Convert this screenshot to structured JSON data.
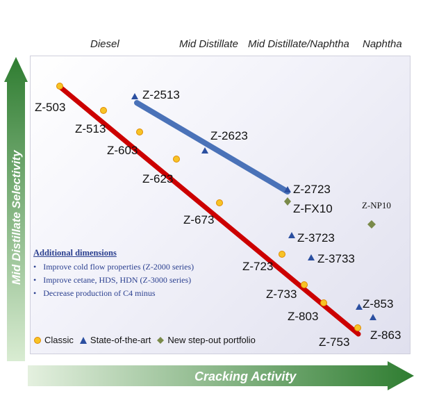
{
  "categories": [
    "Diesel",
    "Mid Distillate",
    "Mid Distillate/Naphtha",
    "Naphtha"
  ],
  "axes": {
    "y_label": "Mid Distillate Selectivity",
    "x_label": "Cracking Activity"
  },
  "series": {
    "classic": {
      "name": "Classic",
      "color": "#cc0000",
      "marker_color": "#f7c326",
      "points": [
        "Z-503",
        "Z-513",
        "Z-603",
        "Z-623",
        "Z-673",
        "Z-723",
        "Z-733",
        "Z-803",
        "Z-753"
      ]
    },
    "state_of_the_art": {
      "name": "State-of-the-art",
      "color": "#4a72b8",
      "marker_color": "#2b4fa0",
      "line_points": [
        "Z-2513",
        "Z-2623",
        "Z-2723"
      ],
      "other_points": [
        "Z-3723",
        "Z-3733",
        "Z-853",
        "Z-863"
      ]
    },
    "step_out": {
      "name": "New step-out portfolio",
      "marker_color": "#7a8a4a",
      "points": [
        "Z-FX10",
        "Z-NP10"
      ]
    }
  },
  "additional_dimensions": {
    "title": "Additional dimensions",
    "items": [
      "Improve cold flow properties (Z-2000 series)",
      "Improve cetane, HDS, HDN (Z-3000 series)",
      "Decrease production of C4 minus"
    ]
  },
  "legend": [
    "Classic",
    "State-of-the-art",
    "New step-out portfolio"
  ]
}
